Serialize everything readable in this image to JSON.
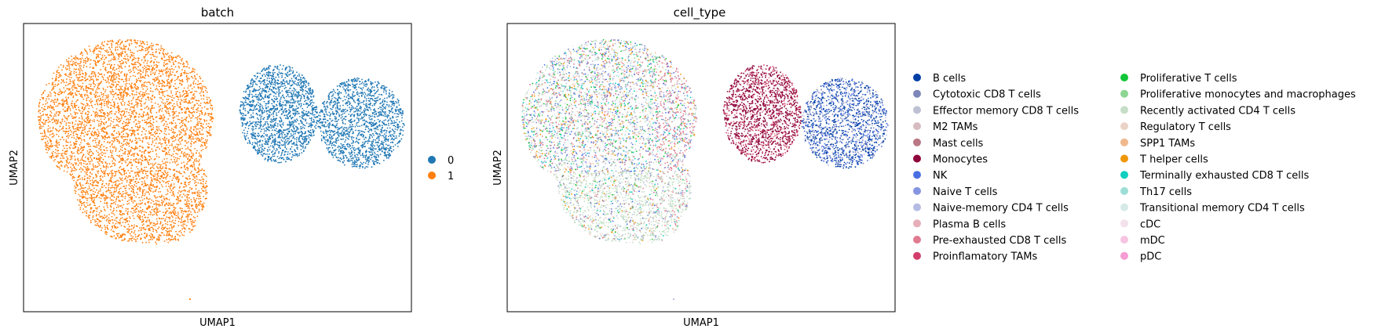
{
  "chart_data": [
    {
      "type": "scatter",
      "title": "batch",
      "xlabel": "UMAP1",
      "ylabel": "UMAP2",
      "grid": false,
      "ticks": false,
      "legend_placement": "right",
      "legend": [
        {
          "label": "0",
          "color": "#1f77b4"
        },
        {
          "label": "1",
          "color": "#ff7f0e"
        }
      ],
      "clusters": [
        {
          "series": "1",
          "shape": "large-lobe-with-tail",
          "approx_fraction": 0.62
        },
        {
          "series": "0",
          "shape": "two-lobes-right",
          "approx_fraction": 0.38
        }
      ]
    },
    {
      "type": "scatter",
      "title": "cell_type",
      "xlabel": "UMAP1",
      "ylabel": "UMAP2",
      "grid": false,
      "ticks": false,
      "legend_placement": "right",
      "legend": [
        {
          "label": "B cells",
          "color": "#023fa5"
        },
        {
          "label": "Cytotoxic CD8 T cells",
          "color": "#7d87b9"
        },
        {
          "label": "Effector memory CD8 T cells",
          "color": "#bec1d4"
        },
        {
          "label": "M2 TAMs",
          "color": "#d6bcc0"
        },
        {
          "label": "Mast cells",
          "color": "#bb7784"
        },
        {
          "label": "Monocytes",
          "color": "#8e063b"
        },
        {
          "label": "NK",
          "color": "#4a6fe3"
        },
        {
          "label": "Naive T cells",
          "color": "#8595e1"
        },
        {
          "label": "Naive-memory CD4 T cells",
          "color": "#b5bbe3"
        },
        {
          "label": "Plasma B cells",
          "color": "#e6afb9"
        },
        {
          "label": "Pre-exhausted CD8 T cells",
          "color": "#e07b91"
        },
        {
          "label": "Proinflamatory TAMs",
          "color": "#d33f6a"
        },
        {
          "label": "Proliferative T cells",
          "color": "#11c638"
        },
        {
          "label": "Proliferative monocytes and macrophages",
          "color": "#8dd593"
        },
        {
          "label": "Recently activated CD4 T cells",
          "color": "#c6dec7"
        },
        {
          "label": "Regulatory T cells",
          "color": "#ead3c6"
        },
        {
          "label": "SPP1 TAMs",
          "color": "#f0b98d"
        },
        {
          "label": "T helper cells",
          "color": "#ef9708"
        },
        {
          "label": "Terminally exhausted CD8 T cells",
          "color": "#0fcfc0"
        },
        {
          "label": "Th17 cells",
          "color": "#9cded6"
        },
        {
          "label": "Transitional memory CD4 T cells",
          "color": "#d5eae7"
        },
        {
          "label": "cDC",
          "color": "#f3e1eb"
        },
        {
          "label": "mDC",
          "color": "#f6c4e1"
        },
        {
          "label": "pDC",
          "color": "#f79cd4"
        }
      ]
    }
  ]
}
